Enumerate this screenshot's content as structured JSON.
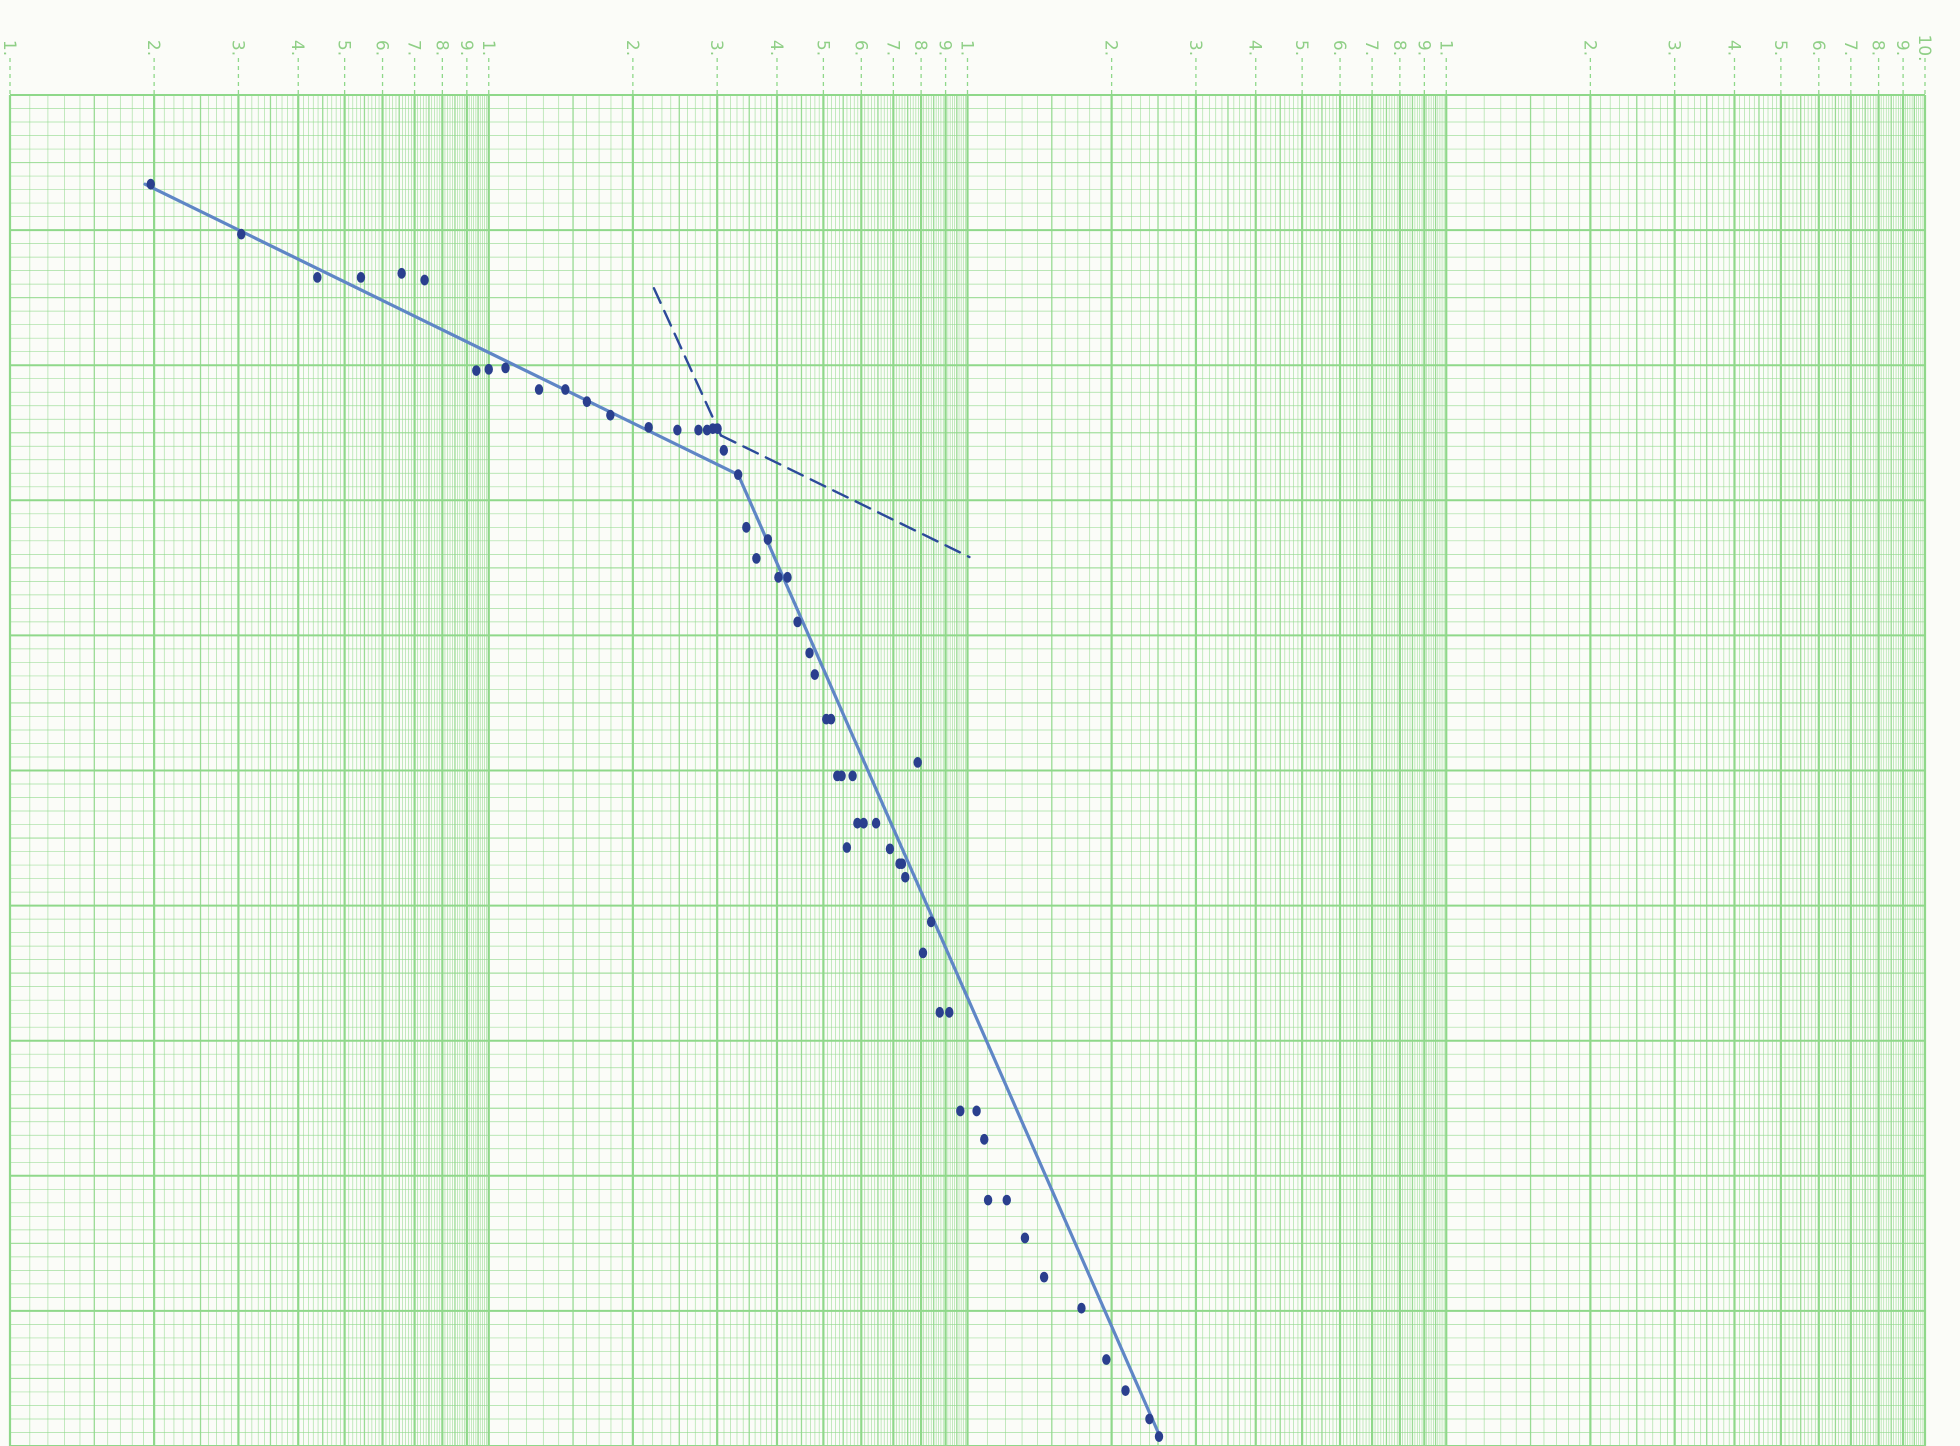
{
  "chart_data": {
    "type": "scatter",
    "title": "",
    "xlabel": "",
    "ylabel": "",
    "x_scale": "log",
    "x_decades": 4,
    "y_scale": "linear",
    "grid": true,
    "grid_color": "#8fd88a",
    "point_color": "#2a3f8e",
    "line_color": "#5f86c6",
    "dashed_color": "#2c4a9a",
    "x_tick_labels": [
      "1.",
      "2.",
      "3.",
      "4.",
      "5.",
      "6.",
      "7.",
      "8.",
      "9.",
      "1.",
      "2.",
      "3.",
      "4.",
      "5.",
      "6.",
      "7.",
      "8.",
      "9.",
      "1.",
      "2.",
      "3.",
      "4.",
      "5.",
      "6.",
      "7.",
      "8.",
      "9.",
      "1.",
      "2.",
      "3.",
      "4.",
      "5.",
      "6.",
      "7.",
      "8.",
      "9.",
      "10."
    ],
    "points": [
      [
        0.294,
        0.066
      ],
      [
        0.483,
        0.103
      ],
      [
        0.642,
        0.135
      ],
      [
        0.733,
        0.135
      ],
      [
        0.818,
        0.132
      ],
      [
        0.866,
        0.137
      ],
      [
        0.974,
        0.204
      ],
      [
        1.0,
        0.203
      ],
      [
        1.035,
        0.202
      ],
      [
        1.105,
        0.218
      ],
      [
        1.16,
        0.218
      ],
      [
        1.205,
        0.227
      ],
      [
        1.254,
        0.237
      ],
      [
        1.334,
        0.246
      ],
      [
        1.394,
        0.248
      ],
      [
        1.438,
        0.248
      ],
      [
        1.456,
        0.248
      ],
      [
        1.468,
        0.247
      ],
      [
        1.478,
        0.247
      ],
      [
        1.491,
        0.263
      ],
      [
        1.521,
        0.281
      ],
      [
        1.538,
        0.32
      ],
      [
        1.559,
        0.343
      ],
      [
        1.583,
        0.329
      ],
      [
        1.605,
        0.357
      ],
      [
        1.624,
        0.357
      ],
      [
        1.645,
        0.39
      ],
      [
        1.67,
        0.413
      ],
      [
        1.681,
        0.429
      ],
      [
        1.705,
        0.462
      ],
      [
        1.715,
        0.462
      ],
      [
        1.728,
        0.504
      ],
      [
        1.737,
        0.504
      ],
      [
        1.76,
        0.504
      ],
      [
        1.748,
        0.557
      ],
      [
        1.77,
        0.539
      ],
      [
        1.783,
        0.539
      ],
      [
        1.809,
        0.539
      ],
      [
        1.838,
        0.558
      ],
      [
        1.858,
        0.569
      ],
      [
        1.863,
        0.569
      ],
      [
        1.87,
        0.579
      ],
      [
        1.896,
        0.494
      ],
      [
        1.924,
        0.612
      ],
      [
        1.907,
        0.635
      ],
      [
        1.942,
        0.679
      ],
      [
        1.962,
        0.679
      ],
      [
        1.985,
        0.752
      ],
      [
        2.019,
        0.752
      ],
      [
        2.035,
        0.773
      ],
      [
        2.043,
        0.818
      ],
      [
        2.082,
        0.818
      ],
      [
        2.12,
        0.846
      ],
      [
        2.16,
        0.875
      ],
      [
        2.238,
        0.898
      ],
      [
        2.29,
        0.936
      ],
      [
        2.33,
        0.959
      ],
      [
        2.38,
        0.98
      ],
      [
        2.4,
        0.993
      ]
    ],
    "trend_lines": [
      {
        "style": "solid",
        "points": [
          [
            0.282,
            0.066
          ],
          [
            1.521,
            0.281
          ]
        ]
      },
      {
        "style": "solid",
        "points": [
          [
            1.521,
            0.281
          ],
          [
            2.402,
            0.993
          ]
        ]
      },
      {
        "style": "dashed",
        "points": [
          [
            1.345,
            0.143
          ],
          [
            1.485,
            0.252
          ]
        ]
      },
      {
        "style": "dashed",
        "points": [
          [
            1.485,
            0.252
          ],
          [
            2.004,
            0.342
          ]
        ]
      }
    ]
  }
}
